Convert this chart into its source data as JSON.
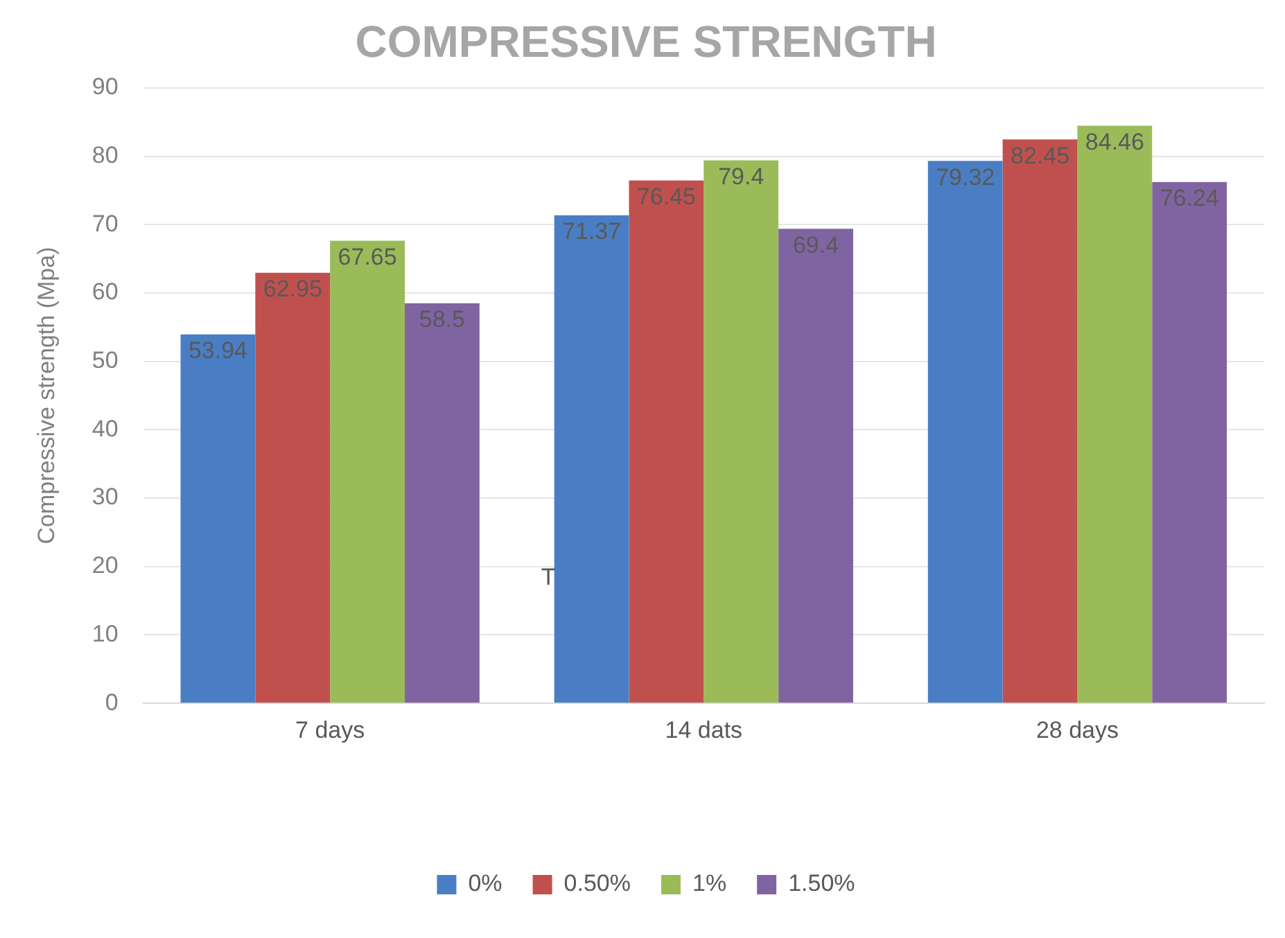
{
  "chart_data": {
    "type": "bar",
    "title": "COMPRESSIVE STRENGTH",
    "ylabel": "Compressive strength (Mpa)",
    "categories": [
      "7 days",
      "14 dats",
      "28 days"
    ],
    "series": [
      {
        "name": "0%",
        "color": "#4a7ec4",
        "values": [
          53.94,
          71.37,
          79.32
        ]
      },
      {
        "name": "0.50%",
        "color": "#c0504d",
        "values": [
          62.95,
          76.45,
          82.45
        ]
      },
      {
        "name": "1%",
        "color": "#9bbb59",
        "values": [
          67.65,
          79.4,
          84.46
        ]
      },
      {
        "name": "1.50%",
        "color": "#8064a2",
        "values": [
          58.5,
          69.4,
          76.24
        ]
      }
    ],
    "ylim": [
      0,
      90
    ],
    "yticks": [
      0,
      10,
      20,
      30,
      40,
      50,
      60,
      70,
      80,
      90
    ],
    "grid": "y",
    "legend": "bottom",
    "data_labels": true,
    "annotations": [
      "T"
    ]
  }
}
